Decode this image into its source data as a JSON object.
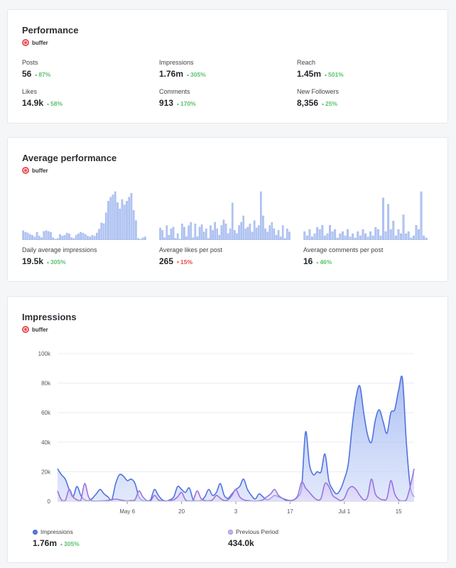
{
  "performance": {
    "title": "Performance",
    "brand": "buffer",
    "metrics": [
      {
        "label": "Posts",
        "value": "56",
        "delta": "87%",
        "direction": "up"
      },
      {
        "label": "Impressions",
        "value": "1.76m",
        "delta": "305%",
        "direction": "up"
      },
      {
        "label": "Reach",
        "value": "1.45m",
        "delta": "501%",
        "direction": "up"
      },
      {
        "label": "Likes",
        "value": "14.9k",
        "delta": "58%",
        "direction": "up"
      },
      {
        "label": "Comments",
        "value": "913",
        "delta": "170%",
        "direction": "up"
      },
      {
        "label": "New Followers",
        "value": "8,356",
        "delta": "25%",
        "direction": "up"
      }
    ]
  },
  "average": {
    "title": "Average performance",
    "brand": "buffer",
    "metrics": [
      {
        "label": "Daily average impressions",
        "value": "19.5k",
        "delta": "305%",
        "direction": "up"
      },
      {
        "label": "Average likes per post",
        "value": "265",
        "delta": "15%",
        "direction": "down"
      },
      {
        "label": "Average comments per post",
        "value": "16",
        "delta": "46%",
        "direction": "up"
      }
    ]
  },
  "impressions": {
    "title": "Impressions",
    "brand": "buffer",
    "legend": [
      {
        "name": "Impressions",
        "value": "1.76m",
        "delta": "305%",
        "direction": "up",
        "color": "#5b7fe3"
      },
      {
        "name": "Previous Period",
        "value": "434.0k",
        "delta": "",
        "direction": "",
        "color": "#a98ae6"
      }
    ]
  },
  "colors": {
    "accent_blue": "#5b7fe3",
    "accent_purple": "#a98ae6",
    "up": "#5cc26f",
    "down": "#e24b4b"
  },
  "chart_data": [
    {
      "type": "bar",
      "title": "",
      "xlabel": "",
      "ylabel": "",
      "values": [
        12,
        10,
        9,
        7,
        6,
        4,
        10,
        5,
        3,
        11,
        12,
        11,
        10,
        3,
        1,
        2,
        7,
        5,
        6,
        9,
        8,
        3,
        2,
        6,
        8,
        10,
        9,
        7,
        5,
        4,
        6,
        5,
        9,
        14,
        22,
        21,
        35,
        50,
        55,
        58,
        62,
        48,
        40,
        52,
        45,
        50,
        55,
        60,
        38,
        25,
        2,
        1,
        3,
        4
      ]
    },
    {
      "type": "bar",
      "title": "",
      "xlabel": "",
      "ylabel": "",
      "values": [
        15,
        12,
        3,
        18,
        6,
        14,
        16,
        2,
        8,
        1,
        20,
        16,
        4,
        18,
        22,
        3,
        20,
        4,
        16,
        19,
        10,
        14,
        2,
        18,
        12,
        22,
        14,
        6,
        18,
        25,
        20,
        8,
        14,
        46,
        12,
        8,
        18,
        22,
        30,
        14,
        16,
        20,
        10,
        24,
        15,
        18,
        60,
        30,
        14,
        10,
        18,
        22,
        14,
        6,
        12,
        4,
        18,
        2,
        14,
        10
      ]
    },
    {
      "type": "bar",
      "title": "",
      "xlabel": "",
      "ylabel": "",
      "values": [
        8,
        4,
        10,
        3,
        6,
        12,
        10,
        14,
        4,
        6,
        14,
        8,
        10,
        2,
        6,
        8,
        4,
        10,
        3,
        6,
        2,
        8,
        4,
        10,
        6,
        3,
        8,
        4,
        12,
        10,
        4,
        40,
        8,
        34,
        10,
        18,
        4,
        10,
        6,
        24,
        6,
        8,
        2,
        4,
        14,
        10,
        46,
        4,
        2
      ]
    },
    {
      "type": "area",
      "title": "",
      "xlabel": "",
      "ylabel": "",
      "ylim": [
        0,
        100000
      ],
      "yticks": [
        "0",
        "20k",
        "40k",
        "60k",
        "80k",
        "100k"
      ],
      "ytick_values": [
        0,
        20000,
        40000,
        60000,
        80000,
        100000
      ],
      "xticks": [
        "May 6",
        "20",
        "3",
        "17",
        "Jul 1",
        "15"
      ],
      "xtick_positions": [
        18,
        32,
        46,
        60,
        74,
        88
      ],
      "x_count": 93,
      "series": [
        {
          "name": "Impressions",
          "color": "#5b7fe3",
          "values": [
            22000,
            18000,
            15000,
            8000,
            3000,
            10000,
            4000,
            1000,
            500,
            2000,
            5000,
            8000,
            5000,
            3000,
            1000,
            12000,
            18000,
            17000,
            14000,
            15000,
            12000,
            3000,
            500,
            200,
            1000,
            8000,
            4000,
            1000,
            200,
            1000,
            3000,
            10000,
            8000,
            6000,
            9000,
            1000,
            300,
            500,
            3000,
            8000,
            4000,
            6000,
            12000,
            4000,
            2000,
            5000,
            8000,
            10000,
            15000,
            8000,
            4000,
            1500,
            5000,
            3000,
            1000,
            2000,
            4000,
            3000,
            2000,
            1000,
            500,
            1000,
            3000,
            10000,
            47000,
            25000,
            18000,
            20000,
            20000,
            32000,
            14000,
            8000,
            5000,
            8000,
            15000,
            25000,
            50000,
            70000,
            78000,
            60000,
            45000,
            40000,
            55000,
            62000,
            54000,
            46000,
            60000,
            62000,
            75000,
            83000,
            40000,
            10000,
            3000
          ]
        },
        {
          "name": "Previous Period",
          "color": "#a98ae6",
          "values": [
            7000,
            1000,
            500,
            8000,
            3000,
            1000,
            500,
            12000,
            3000,
            200,
            100,
            200,
            300,
            500,
            1000,
            1500,
            1000,
            500,
            200,
            500,
            1000,
            7000,
            3000,
            500,
            200,
            4000,
            1000,
            200,
            100,
            500,
            1000,
            3000,
            6000,
            1000,
            200,
            500,
            7000,
            2000,
            500,
            300,
            1000,
            4000,
            2000,
            500,
            1000,
            4000,
            8000,
            3000,
            1000,
            500,
            200,
            100,
            300,
            1000,
            3000,
            5000,
            8000,
            4000,
            2000,
            500,
            200,
            1000,
            4000,
            13000,
            9000,
            6000,
            3000,
            1000,
            2000,
            12000,
            10000,
            4000,
            2000,
            500,
            2000,
            8000,
            10000,
            8000,
            4000,
            1000,
            3000,
            15000,
            5000,
            2000,
            1000,
            2000,
            14000,
            5000,
            1000,
            200,
            1000,
            10000,
            22000
          ]
        }
      ]
    }
  ]
}
